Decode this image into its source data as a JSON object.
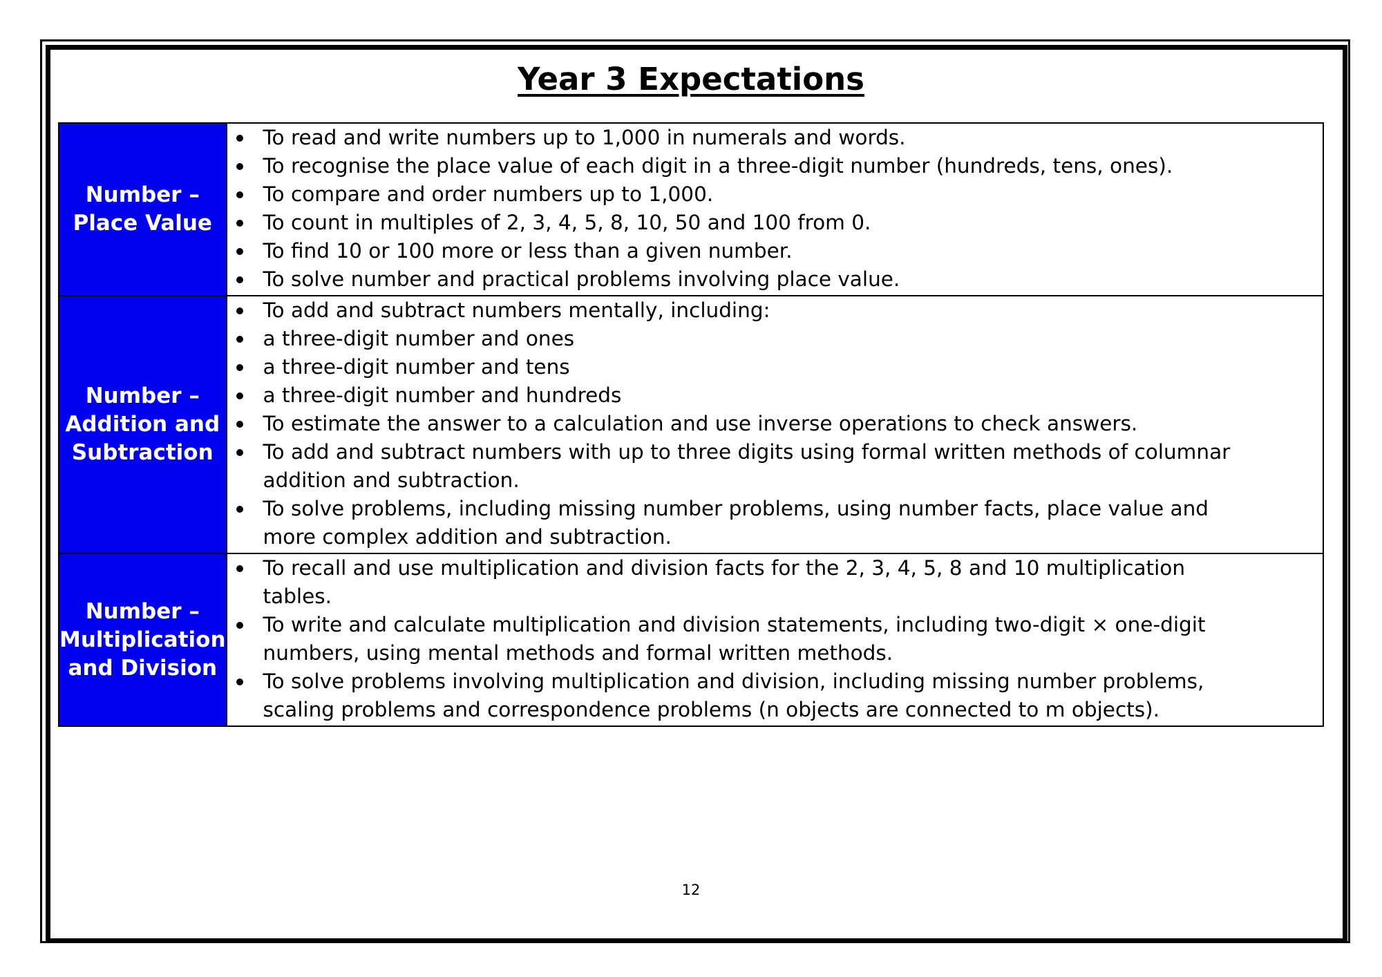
{
  "title": "Year 3 Expectations",
  "sections": [
    {
      "category": [
        "Number –",
        "Place Value"
      ],
      "items": [
        [
          "To read and write numbers up to 1,000 in numerals and words."
        ],
        [
          "To recognise the place value of each digit in a three-digit number (hundreds, tens, ones)."
        ],
        [
          "To compare and order numbers up to 1,000."
        ],
        [
          "To count in multiples of 2, 3, 4, 5, 8, 10, 50 and 100 from 0."
        ],
        [
          "To find 10 or 100 more or less than a given number."
        ],
        [
          "To solve number and practical problems involving place value."
        ]
      ]
    },
    {
      "category": [
        "Number –",
        "Addition and",
        "Subtraction"
      ],
      "items": [
        [
          "To add and subtract numbers mentally, including:"
        ],
        [
          "a three-digit number and ones"
        ],
        [
          "a three-digit number and tens"
        ],
        [
          "a three-digit number and hundreds"
        ],
        [
          "To estimate the answer to a calculation and use inverse operations to check answers."
        ],
        [
          "To add and subtract numbers with up to three digits using formal written methods of columnar",
          "addition and subtraction."
        ],
        [
          "To solve problems, including missing number problems, using number facts, place value and",
          "more complex addition and subtraction."
        ]
      ]
    },
    {
      "category": [
        "Number –",
        "Multiplication",
        "and Division"
      ],
      "items": [
        [
          "To recall and use multiplication and division facts for the 2, 3, 4, 5, 8 and 10 multiplication",
          "tables."
        ],
        [
          "To write and calculate multiplication and division statements, including two-digit × one-digit",
          "numbers, using mental methods and formal written methods."
        ],
        [
          "To solve problems involving multiplication and division, including missing number problems,",
          "scaling problems and correspondence problems (n objects are connected to m objects)."
        ]
      ]
    }
  ],
  "page_number": "12",
  "colors": {
    "category_bg": "#0000ee",
    "category_text": "#ffffff"
  }
}
